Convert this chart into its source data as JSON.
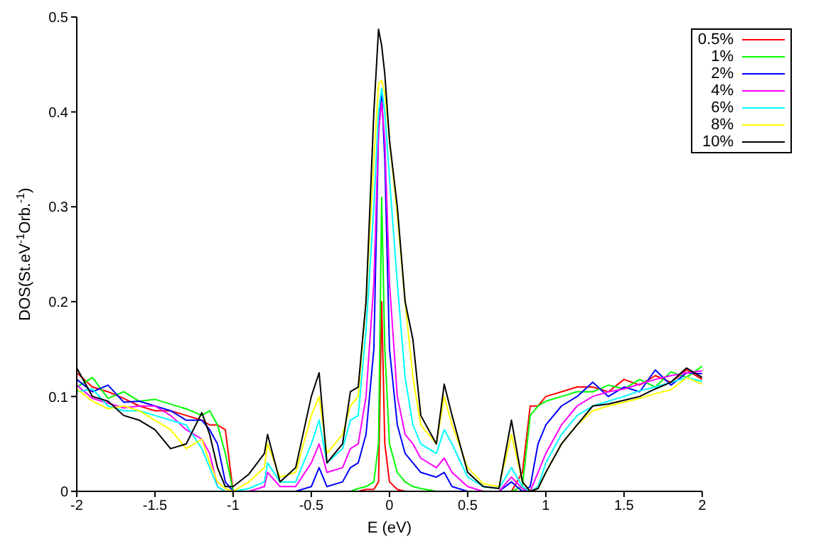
{
  "chart_data": {
    "type": "line",
    "xlabel": "E (eV)",
    "ylabel": "DOS(St.eV$^{-1}$Orb.$^{-1}$)",
    "x": [
      -2,
      -1.9,
      -1.8,
      -1.7,
      -1.6,
      -1.5,
      -1.4,
      -1.3,
      -1.2,
      -1.15,
      -1.1,
      -1.05,
      -1.0,
      -0.9,
      -0.8,
      -0.78,
      -0.7,
      -0.6,
      -0.5,
      -0.45,
      -0.4,
      -0.3,
      -0.25,
      -0.2,
      -0.15,
      -0.1,
      -0.07,
      -0.05,
      -0.03,
      0,
      0.05,
      0.1,
      0.15,
      0.2,
      0.3,
      0.35,
      0.4,
      0.5,
      0.6,
      0.7,
      0.78,
      0.85,
      0.9,
      0.95,
      1.0,
      1.1,
      1.2,
      1.3,
      1.4,
      1.5,
      1.6,
      1.7,
      1.8,
      1.9,
      2.0
    ],
    "series": [
      {
        "name": "0.5%",
        "color": "#ff0000",
        "values": [
          0.125,
          0.11,
          0.105,
          0.098,
          0.09,
          0.085,
          0.085,
          0.08,
          0.075,
          0.07,
          0.07,
          0.065,
          0,
          0,
          0,
          0,
          0,
          0,
          0,
          0,
          0,
          0,
          0,
          0,
          0.002,
          0.002,
          0.01,
          0.2,
          0.05,
          0.01,
          0.002,
          0,
          0,
          0,
          0,
          0,
          0,
          0,
          0,
          0,
          0,
          0.02,
          0.09,
          0.09,
          0.1,
          0.105,
          0.11,
          0.11,
          0.105,
          0.118,
          0.112,
          0.122,
          0.115,
          0.128,
          0.118
        ]
      },
      {
        "name": "1%",
        "color": "#00ff00",
        "values": [
          0.11,
          0.12,
          0.098,
          0.105,
          0.095,
          0.097,
          0.092,
          0.087,
          0.08,
          0.085,
          0.07,
          0.04,
          0,
          0,
          0,
          0,
          0,
          0,
          0,
          0,
          0,
          0,
          0,
          0.003,
          0.005,
          0.01,
          0.05,
          0.31,
          0.15,
          0.05,
          0.02,
          0.01,
          0.005,
          0.003,
          0,
          0,
          0,
          0,
          0,
          0,
          0,
          0.005,
          0.08,
          0.09,
          0.095,
          0.1,
          0.105,
          0.105,
          0.112,
          0.108,
          0.118,
          0.11,
          0.126,
          0.12,
          0.132
        ]
      },
      {
        "name": "2%",
        "color": "#0000ff",
        "values": [
          0.118,
          0.105,
          0.112,
          0.094,
          0.095,
          0.09,
          0.085,
          0.075,
          0.075,
          0.065,
          0.05,
          0.01,
          0,
          0,
          0,
          0,
          0,
          0,
          0.005,
          0.025,
          0.005,
          0.01,
          0.025,
          0.03,
          0.06,
          0.15,
          0.38,
          0.42,
          0.35,
          0.15,
          0.07,
          0.04,
          0.03,
          0.02,
          0.015,
          0.02,
          0.005,
          0,
          0,
          0,
          0.01,
          0,
          0.005,
          0.05,
          0.07,
          0.09,
          0.1,
          0.115,
          0.1,
          0.11,
          0.105,
          0.128,
          0.112,
          0.125,
          0.124
        ]
      },
      {
        "name": "4%",
        "color": "#ff00ff",
        "values": [
          0.112,
          0.098,
          0.093,
          0.088,
          0.09,
          0.09,
          0.08,
          0.065,
          0.055,
          0.04,
          0.005,
          0,
          0,
          0,
          0.005,
          0.02,
          0.005,
          0.005,
          0.03,
          0.05,
          0.02,
          0.025,
          0.045,
          0.05,
          0.1,
          0.22,
          0.38,
          0.41,
          0.37,
          0.22,
          0.1,
          0.06,
          0.05,
          0.035,
          0.025,
          0.035,
          0.02,
          0.005,
          0,
          0,
          0.015,
          0.003,
          0,
          0.02,
          0.04,
          0.07,
          0.09,
          0.1,
          0.105,
          0.108,
          0.113,
          0.118,
          0.122,
          0.125,
          0.127
        ]
      },
      {
        "name": "6%",
        "color": "#00ffff",
        "values": [
          0.105,
          0.108,
          0.09,
          0.085,
          0.085,
          0.08,
          0.075,
          0.07,
          0.045,
          0.025,
          0.005,
          0,
          0,
          0.003,
          0.01,
          0.03,
          0.01,
          0.01,
          0.05,
          0.075,
          0.03,
          0.045,
          0.075,
          0.08,
          0.17,
          0.3,
          0.4,
          0.425,
          0.4,
          0.33,
          0.22,
          0.12,
          0.07,
          0.05,
          0.04,
          0.065,
          0.05,
          0.015,
          0.005,
          0.003,
          0.025,
          0.005,
          0,
          0.005,
          0.03,
          0.06,
          0.08,
          0.09,
          0.095,
          0.1,
          0.106,
          0.11,
          0.115,
          0.12,
          0.116
        ]
      },
      {
        "name": "8%",
        "color": "#ffff00",
        "values": [
          0.108,
          0.095,
          0.087,
          0.09,
          0.085,
          0.075,
          0.065,
          0.045,
          0.055,
          0.03,
          0.01,
          0.003,
          0,
          0.01,
          0.025,
          0.05,
          0.015,
          0.02,
          0.08,
          0.1,
          0.04,
          0.06,
          0.09,
          0.1,
          0.2,
          0.35,
          0.43,
          0.433,
          0.42,
          0.37,
          0.29,
          0.2,
          0.12,
          0.07,
          0.05,
          0.1,
          0.07,
          0.025,
          0.008,
          0.005,
          0.06,
          0.01,
          0,
          0.003,
          0.02,
          0.05,
          0.07,
          0.085,
          0.09,
          0.094,
          0.098,
          0.103,
          0.107,
          0.12,
          0.113
        ]
      },
      {
        "name": "10%",
        "color": "#000000",
        "values": [
          0.13,
          0.1,
          0.095,
          0.08,
          0.075,
          0.065,
          0.045,
          0.05,
          0.083,
          0.06,
          0.025,
          0.005,
          0.005,
          0.018,
          0.04,
          0.06,
          0.01,
          0.025,
          0.1,
          0.125,
          0.03,
          0.05,
          0.105,
          0.11,
          0.2,
          0.4,
          0.487,
          0.47,
          0.44,
          0.37,
          0.3,
          0.2,
          0.16,
          0.08,
          0.05,
          0.113,
          0.08,
          0.02,
          0.005,
          0.003,
          0.075,
          0.01,
          0,
          0.003,
          0.02,
          0.05,
          0.07,
          0.09,
          0.092,
          0.096,
          0.1,
          0.108,
          0.115,
          0.13,
          0.12
        ]
      }
    ],
    "xlim": [
      -2,
      2
    ],
    "xticks": [
      -2,
      -1.5,
      -1,
      -0.5,
      0,
      0.5,
      1,
      1.5,
      2
    ],
    "ylim": [
      0,
      0.5
    ],
    "yticks": [
      0,
      0.1,
      0.2,
      0.3,
      0.4,
      0.5
    ],
    "grid": false,
    "legend": "top right",
    "marker": "none",
    "line_style": "solid"
  }
}
